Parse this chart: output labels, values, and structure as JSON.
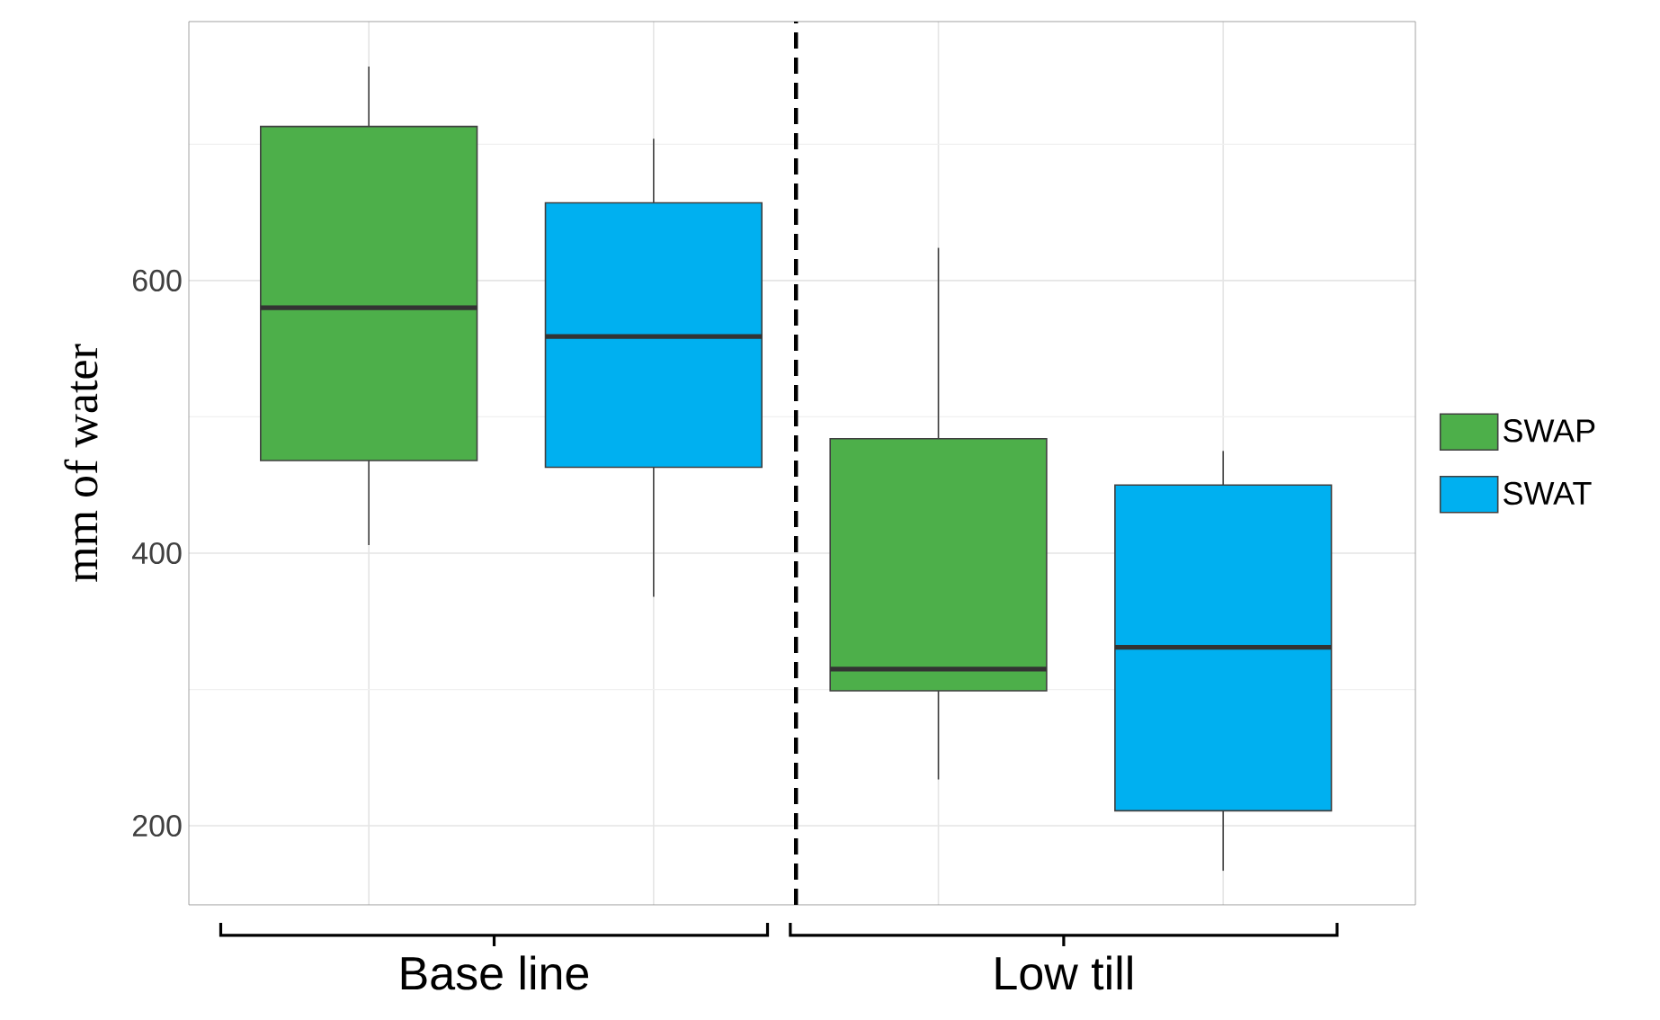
{
  "chart_data": {
    "type": "box",
    "ylabel": "mm of water",
    "categories": [
      null,
      null,
      null,
      null
    ],
    "series": [
      {
        "name": "SWAP",
        "color": "#4daf4a",
        "boxes": [
          {
            "low": 406,
            "q1": 468,
            "median": 580,
            "q3": 713,
            "high": 757
          },
          null,
          {
            "low": 234,
            "q1": 299,
            "median": 315,
            "q3": 484,
            "high": 624
          },
          null
        ]
      },
      {
        "name": "SWAT",
        "color": "#00b0f0",
        "boxes": [
          null,
          {
            "low": 368,
            "q1": 463,
            "median": 559,
            "q3": 657,
            "high": 704
          },
          null,
          {
            "low": 167,
            "q1": 211,
            "median": 331,
            "q3": 450,
            "high": 475
          }
        ]
      }
    ],
    "ylim": [
      142,
      790
    ],
    "yticks": [
      200,
      400,
      600
    ],
    "grid": true,
    "legend": "right",
    "tick_labels": "y",
    "annotations": [
      "Base line",
      "Low till"
    ]
  }
}
